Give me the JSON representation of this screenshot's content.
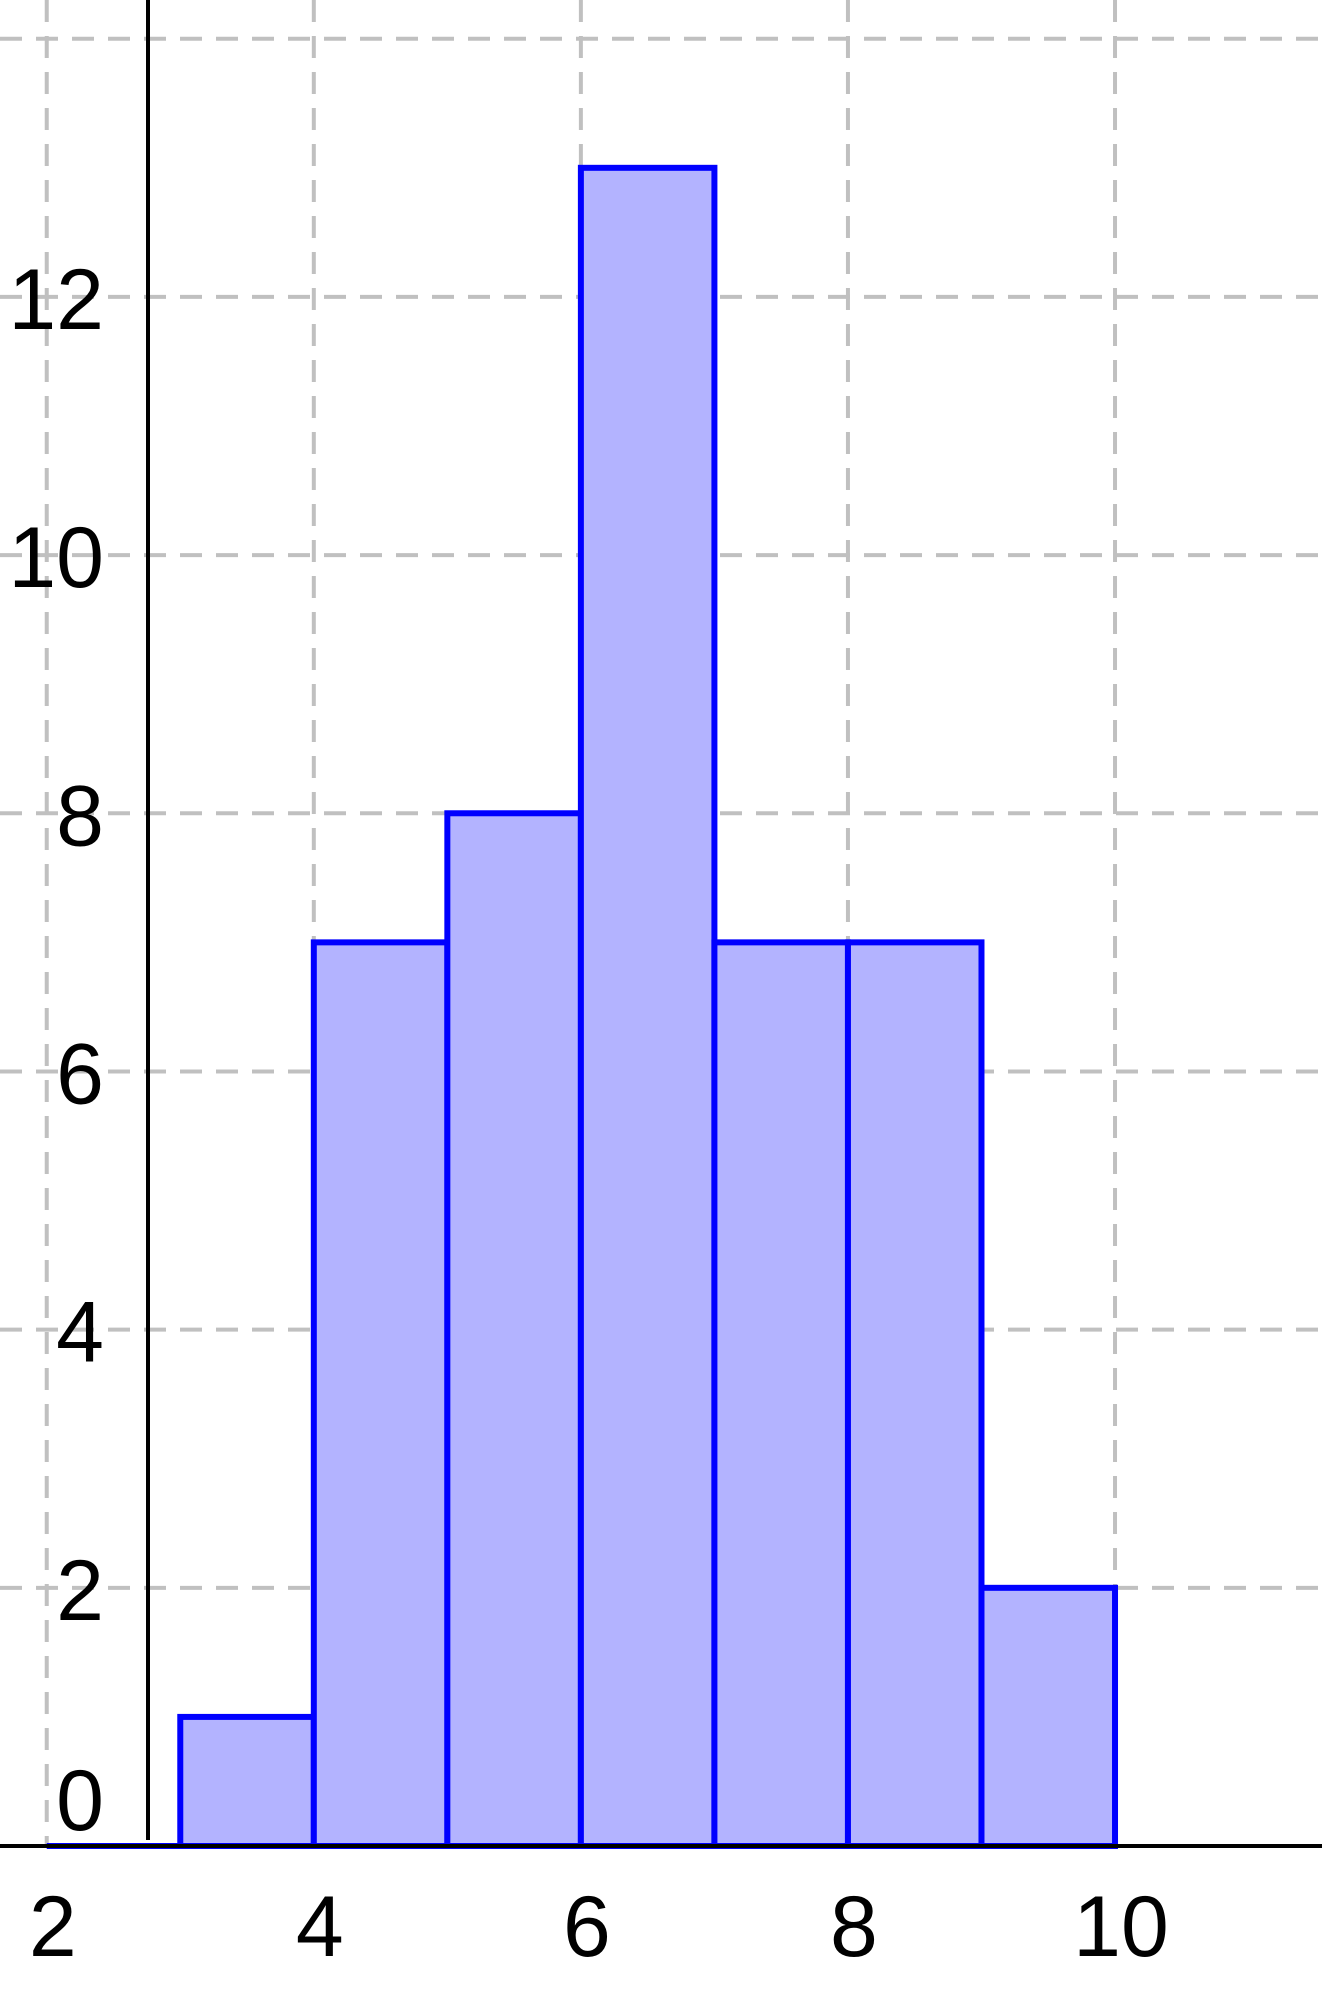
{
  "chart_data": {
    "type": "bar",
    "subtype": "histogram",
    "title": "",
    "xlabel": "",
    "ylabel": "",
    "bins": [
      {
        "x0": 2,
        "x1": 3,
        "value": 0
      },
      {
        "x0": 3,
        "x1": 4,
        "value": 1
      },
      {
        "x0": 4,
        "x1": 5,
        "value": 7
      },
      {
        "x0": 5,
        "x1": 6,
        "value": 8
      },
      {
        "x0": 6,
        "x1": 7,
        "value": 13
      },
      {
        "x0": 7,
        "x1": 8,
        "value": 7
      },
      {
        "x0": 8,
        "x1": 9,
        "value": 7
      },
      {
        "x0": 9,
        "x1": 10,
        "value": 2
      }
    ],
    "xlim": [
      1.65,
      11.55
    ],
    "ylim": [
      0,
      14.3
    ],
    "x_ticks": [
      "2",
      "4",
      "6",
      "8",
      "10"
    ],
    "y_ticks": [
      "0",
      "2",
      "4",
      "6",
      "8",
      "10",
      "12"
    ],
    "grid": true,
    "grid_style": "dashed",
    "colors": {
      "bar_fill": "#b3b3ff",
      "bar_stroke": "#0000ff",
      "grid": "#c0c0c0",
      "axis": "#000000"
    }
  }
}
